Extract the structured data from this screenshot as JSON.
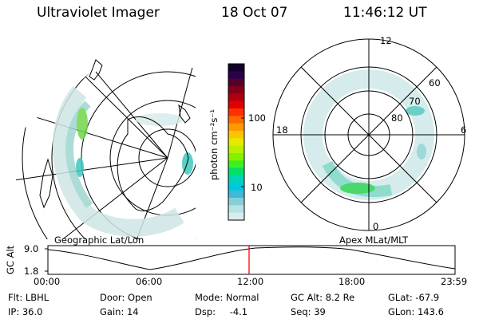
{
  "header": {
    "title": "Ultraviolet Imager",
    "date": "18 Oct 07",
    "time": "11:46:12 UT"
  },
  "colorbar": {
    "unit_label": "photon cm⁻²s⁻¹",
    "ticks": [
      "100",
      "10"
    ],
    "colors": [
      "#15002a",
      "#2a004a",
      "#55002a",
      "#800018",
      "#b00010",
      "#e00000",
      "#ff3000",
      "#ff6a00",
      "#ff9900",
      "#ffc400",
      "#e6ea00",
      "#b8f000",
      "#84f000",
      "#3cf020",
      "#00e070",
      "#00d4b8",
      "#00c8e0",
      "#40b8d8",
      "#86cfd8",
      "#b8e2e4",
      "#d8eeee"
    ]
  },
  "geo_map": {
    "caption": "Geographic Lat/Lon"
  },
  "apex_map": {
    "caption": "Apex MLat/MLT",
    "mlt_labels": {
      "top": "12",
      "left": "18",
      "right": "6",
      "bottom": "0"
    },
    "mlat_labels": [
      "60",
      "70",
      "80"
    ]
  },
  "timeline": {
    "ylabel": "GC Alt",
    "y_ticks": [
      "9.0",
      "1.8"
    ],
    "x_ticks": [
      "00:00",
      "06:00",
      "12:00",
      "18:00",
      "23:59"
    ],
    "marker_color": "#ff0000",
    "marker_time": "11:46:12"
  },
  "status": {
    "flt_label": "Flt:",
    "flt_value": "LBHL",
    "ip_label": "IP:",
    "ip_value": "36.0",
    "door_label": "Door:",
    "door_value": "Open",
    "gain_label": "Gain:",
    "gain_value": "14",
    "mode_label": "Mode:",
    "mode_value": "Normal",
    "dsp_label": "Dsp:",
    "dsp_value": "-4.1",
    "gcalt_label": "GC Alt:",
    "gcalt_value": "8.2 Re",
    "seq_label": "Seq:",
    "seq_value": "39",
    "glat_label": "GLat:",
    "glat_value": "-67.9",
    "glon_label": "GLon:",
    "glon_value": "143.6"
  }
}
